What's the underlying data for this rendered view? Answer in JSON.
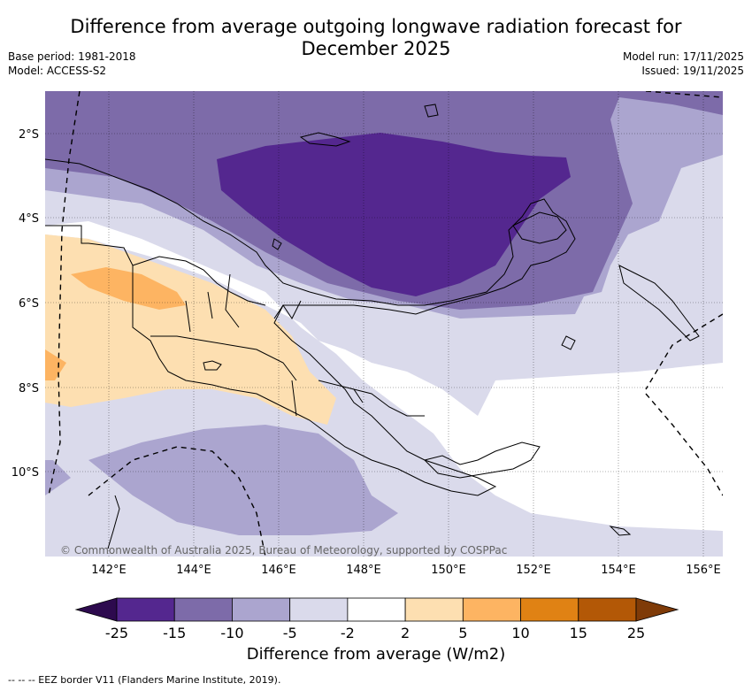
{
  "header": {
    "title_line1": "Difference from average outgoing longwave radiation forecast for",
    "title_line2": "December 2025",
    "base_period": "Base period: 1981-2018",
    "model": "Model: ACCESS-S2",
    "model_run": "Model run: 17/11/2025",
    "issued": "Issued: 19/11/2025"
  },
  "map": {
    "latitude_labels": [
      "2°S",
      "4°S",
      "6°S",
      "8°S",
      "10°S"
    ],
    "longitude_labels": [
      "142°E",
      "144°E",
      "146°E",
      "148°E",
      "150°E",
      "152°E",
      "154°E",
      "156°E"
    ],
    "copyright": "© Commonwealth of Australia 2025, Bureau of Meteorology, supported by COSPPac"
  },
  "colorbar": {
    "tick_labels": [
      "-25",
      "-15",
      "-10",
      "-5",
      "-2",
      "2",
      "5",
      "10",
      "15",
      "25"
    ],
    "colors": [
      "#2d0a4e",
      "#54278f",
      "#7d6ba9",
      "#aba5cf",
      "#dadaeb",
      "#ffffff",
      "#fddfb1",
      "#fdb462",
      "#e08214",
      "#b35806",
      "#7f3b08"
    ],
    "label": "Difference from average (W/m2)"
  },
  "footer": {
    "eez_note": "--  --  -- EEZ border V11 (Flanders Marine Institute, 2019)."
  }
}
